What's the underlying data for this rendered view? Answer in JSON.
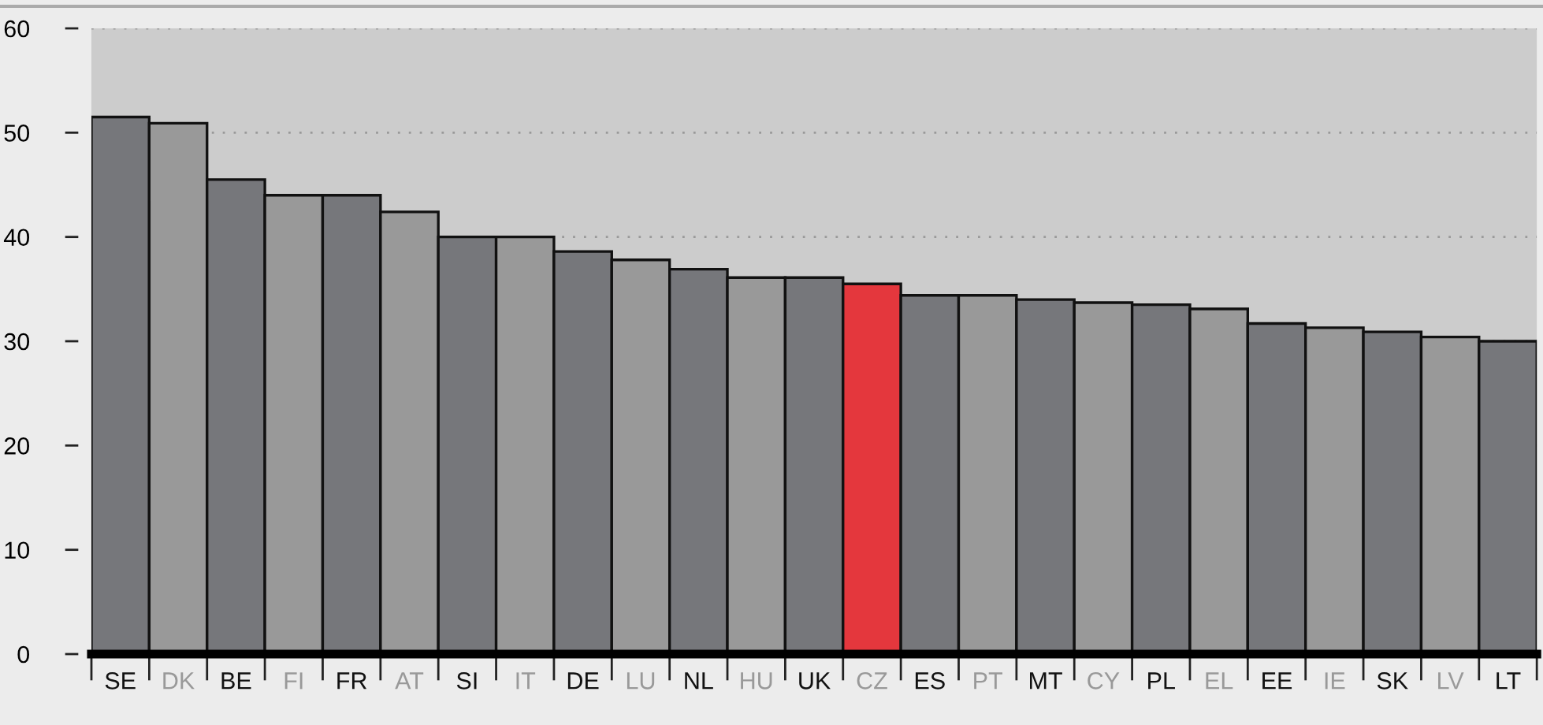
{
  "chart_data": {
    "type": "bar",
    "categories": [
      "SE",
      "DK",
      "BE",
      "FI",
      "FR",
      "AT",
      "SI",
      "IT",
      "DE",
      "LU",
      "NL",
      "HU",
      "UK",
      "CZ",
      "ES",
      "PT",
      "MT",
      "CY",
      "PL",
      "EL",
      "EE",
      "IE",
      "SK",
      "LV",
      "LT"
    ],
    "values": [
      51.5,
      50.9,
      45.5,
      44.0,
      44.0,
      42.4,
      40.0,
      40.0,
      38.6,
      37.8,
      36.9,
      36.1,
      36.1,
      35.5,
      34.4,
      34.4,
      34.0,
      33.7,
      33.5,
      33.1,
      31.7,
      31.3,
      30.9,
      30.4,
      30.0
    ],
    "colors": [
      "#76777b",
      "#999999",
      "#76777b",
      "#999999",
      "#76777b",
      "#999999",
      "#76777b",
      "#999999",
      "#76777b",
      "#999999",
      "#76777b",
      "#999999",
      "#76777b",
      "#e4373d",
      "#76777b",
      "#999999",
      "#76777b",
      "#999999",
      "#76777b",
      "#999999",
      "#76777b",
      "#999999",
      "#76777b",
      "#999999",
      "#76777b"
    ],
    "ylim": [
      0,
      60
    ],
    "yticks": [
      0,
      10,
      20,
      30,
      40,
      50,
      60
    ],
    "grid": "y",
    "legend": false
  }
}
